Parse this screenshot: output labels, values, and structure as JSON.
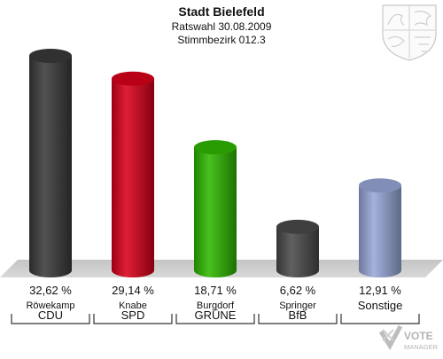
{
  "header": {
    "title": "Stadt Bielefeld",
    "subtitle": "Ratswahl 30.08.2009",
    "district": "Stimmbezirk 012.3"
  },
  "logo": {
    "text": "VOTE MANAGER",
    "icon": "vote-manager-logo"
  },
  "coat_of_arms": {
    "icon": "coat-of-arms-icon"
  },
  "chart_data": {
    "type": "bar",
    "title": "Stadt Bielefeld",
    "subtitle": "Ratswahl 30.08.2009",
    "categories": [
      "CDU",
      "SPD",
      "GRÜNE",
      "BfB",
      "Sonstige"
    ],
    "candidates": [
      "Röwekamp",
      "Knabe",
      "Burgdorf",
      "Springer",
      ""
    ],
    "values": [
      32.62,
      29.14,
      18.71,
      6.62,
      12.91
    ],
    "value_labels": [
      "32,62 %",
      "29,14 %",
      "18,71 %",
      "6,62 %",
      "12,91 %"
    ],
    "colors": [
      "#3a3a3a",
      "#d9001b",
      "#2fb800",
      "#4a4a4a",
      "#98a8d8"
    ],
    "ylim": [
      0,
      35
    ],
    "grid": false,
    "legend": "none"
  }
}
